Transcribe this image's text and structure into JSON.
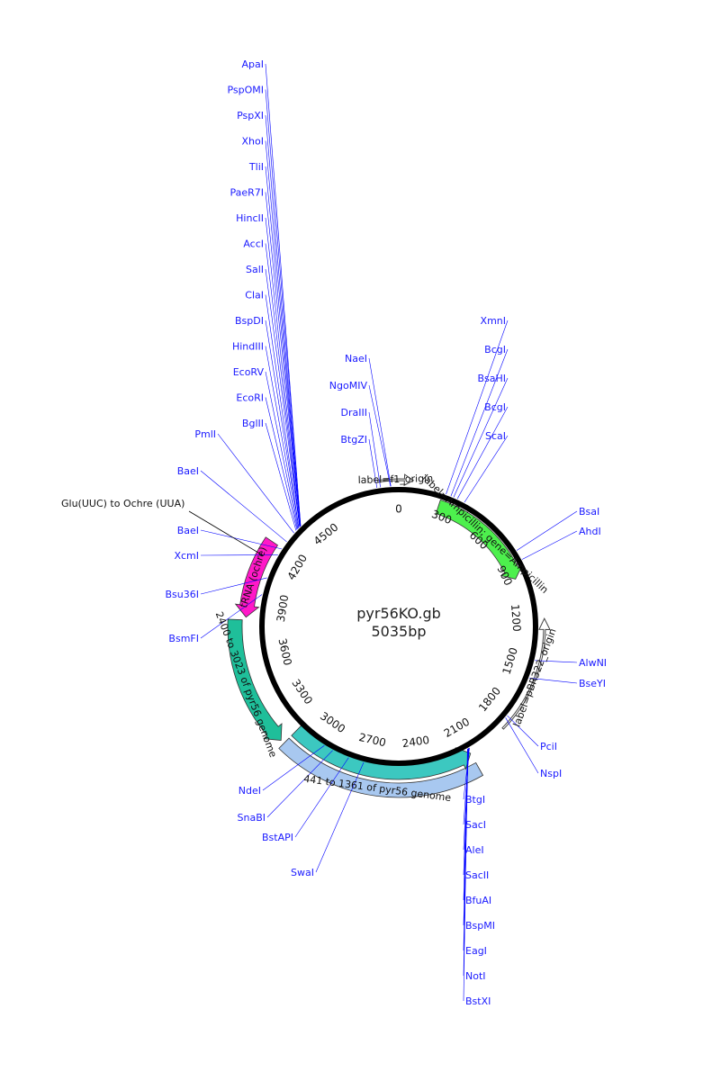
{
  "title": {
    "name": "pyr56KO.gb",
    "length": "5035bp"
  },
  "plasmid": {
    "length_bp": 5035,
    "orientation": "clockwise, 0 at top"
  },
  "ticks": [
    "0",
    "300",
    "600",
    "900",
    "1200",
    "1500",
    "1800",
    "2100",
    "2400",
    "2700",
    "3000",
    "3300",
    "3600",
    "3900",
    "4200",
    "4500"
  ],
  "features": [
    {
      "label": "label=Ampicillin; gene=Ampicillin",
      "color": "#4df04d",
      "start": 255,
      "end": 950,
      "direction": "forward",
      "radius": 140,
      "width": 16
    },
    {
      "label": "label=f1_origin",
      "color": "#ffffff",
      "start": 4920,
      "end": 80,
      "direction": "forward",
      "style": "arrow-outline",
      "radius": 163
    },
    {
      "label": "label=pBR322_origin",
      "color": "#ffffff",
      "start": 1215,
      "end": 1880,
      "direction": "reverse",
      "style": "arrow-outline",
      "radius": 162
    },
    {
      "label": "441 to 1361 of pyr56 genome",
      "color": "#a8c8f0",
      "start": 2105,
      "end": 3140,
      "direction": "none",
      "radius": 182,
      "width": 16
    },
    {
      "label": "",
      "color": "#3cc8c0",
      "start": 2105,
      "end": 3140,
      "direction": "reverse",
      "radius": 162,
      "width": 16
    },
    {
      "label": "2400 to 3023 of pyr56 genome",
      "color": "#1fbf9a",
      "start": 3160,
      "end": 3810,
      "direction": "reverse",
      "radius": 182,
      "width": 16
    },
    {
      "label": "tRNA (ochre)",
      "color": "#ff19c8",
      "start": 3825,
      "end": 4250,
      "direction": "reverse",
      "radius": 170,
      "width": 16
    }
  ],
  "annotation": {
    "label": "Glu(UUC) to Ochre (UUA)"
  },
  "enzymes": [
    {
      "name": "ApaI",
      "pos": 4415,
      "side": "top"
    },
    {
      "name": "PspOMI",
      "pos": 4415,
      "side": "top"
    },
    {
      "name": "PspXI",
      "pos": 4412,
      "side": "top"
    },
    {
      "name": "XhoI",
      "pos": 4412,
      "side": "top"
    },
    {
      "name": "TliI",
      "pos": 4412,
      "side": "top"
    },
    {
      "name": "PaeR7I",
      "pos": 4412,
      "side": "top"
    },
    {
      "name": "HincII",
      "pos": 4408,
      "side": "top"
    },
    {
      "name": "AccI",
      "pos": 4407,
      "side": "top"
    },
    {
      "name": "SalI",
      "pos": 4407,
      "side": "top"
    },
    {
      "name": "ClaI",
      "pos": 4400,
      "side": "top"
    },
    {
      "name": "BspDI",
      "pos": 4400,
      "side": "top"
    },
    {
      "name": "HindIII",
      "pos": 4395,
      "side": "top"
    },
    {
      "name": "EcoRV",
      "pos": 4390,
      "side": "top"
    },
    {
      "name": "EcoRI",
      "pos": 4385,
      "side": "top"
    },
    {
      "name": "BglII",
      "pos": 4378,
      "side": "top"
    },
    {
      "name": "PmlI",
      "pos": 4360,
      "side": "left"
    },
    {
      "name": "BaeI",
      "pos": 4295,
      "side": "left"
    },
    {
      "name": "BaeI",
      "pos": 4245,
      "side": "left"
    },
    {
      "name": "XcmI",
      "pos": 4205,
      "side": "left"
    },
    {
      "name": "Bsu36I",
      "pos": 4060,
      "side": "left"
    },
    {
      "name": "BsmFI",
      "pos": 3960,
      "side": "left"
    },
    {
      "name": "NaeI",
      "pos": 4990,
      "side": "top"
    },
    {
      "name": "NgoMIV",
      "pos": 4988,
      "side": "top"
    },
    {
      "name": "DraIII",
      "pos": 4930,
      "side": "top"
    },
    {
      "name": "BtgZI",
      "pos": 4910,
      "side": "top"
    },
    {
      "name": "XmnI",
      "pos": 275,
      "side": "top"
    },
    {
      "name": "BcgI",
      "pos": 305,
      "side": "top"
    },
    {
      "name": "BsaHI",
      "pos": 322,
      "side": "top"
    },
    {
      "name": "BcgI",
      "pos": 345,
      "side": "top"
    },
    {
      "name": "ScaI",
      "pos": 390,
      "side": "top"
    },
    {
      "name": "BsaI",
      "pos": 800,
      "side": "right"
    },
    {
      "name": "AhdI",
      "pos": 860,
      "side": "right"
    },
    {
      "name": "AlwNI",
      "pos": 1455,
      "side": "right"
    },
    {
      "name": "BseYI",
      "pos": 1560,
      "side": "right"
    },
    {
      "name": "PciI",
      "pos": 1810,
      "side": "right"
    },
    {
      "name": "NspI",
      "pos": 1825,
      "side": "right"
    },
    {
      "name": "BtgI",
      "pos": 2095,
      "side": "bottom"
    },
    {
      "name": "SacI",
      "pos": 2097,
      "side": "bottom"
    },
    {
      "name": "AleI",
      "pos": 2099,
      "side": "bottom"
    },
    {
      "name": "SacII",
      "pos": 2101,
      "side": "bottom"
    },
    {
      "name": "BfuAI",
      "pos": 2103,
      "side": "bottom"
    },
    {
      "name": "BspMI",
      "pos": 2103,
      "side": "bottom"
    },
    {
      "name": "EagI",
      "pos": 2105,
      "side": "bottom"
    },
    {
      "name": "NotI",
      "pos": 2105,
      "side": "bottom"
    },
    {
      "name": "BstXI",
      "pos": 2108,
      "side": "bottom"
    },
    {
      "name": "NdeI",
      "pos": 2965,
      "side": "left"
    },
    {
      "name": "SnaBI",
      "pos": 2910,
      "side": "left"
    },
    {
      "name": "BstAPI",
      "pos": 2810,
      "side": "bottom"
    },
    {
      "name": "SwaI",
      "pos": 2720,
      "side": "bottom"
    }
  ],
  "colors": {
    "enzyme_text": "#1a1aff",
    "enzyme_line": "#0000ff",
    "backbone": "#000000"
  }
}
